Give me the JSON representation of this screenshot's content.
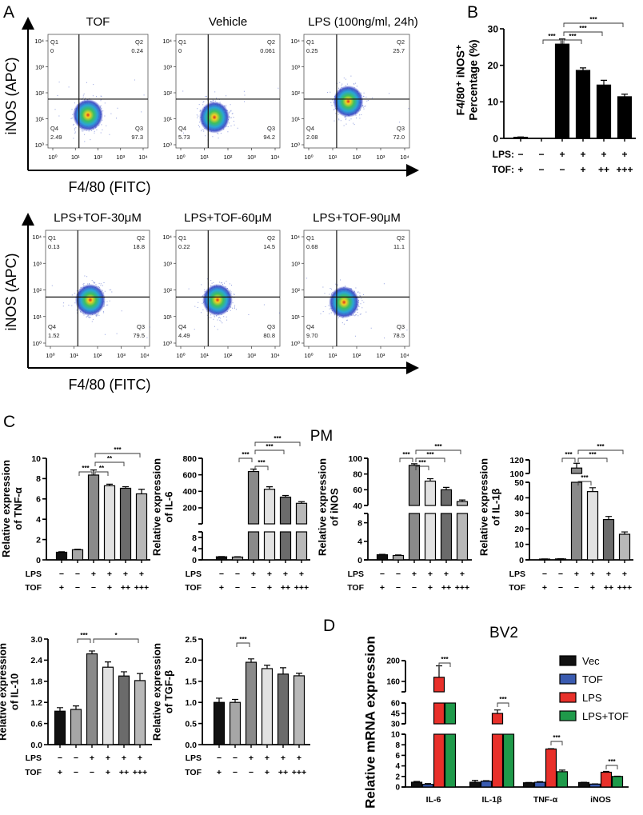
{
  "panel_labels": {
    "A": "A",
    "B": "B",
    "C": "C",
    "D": "D"
  },
  "panel_A": {
    "y_axis_label": "iNOS  (APC)",
    "x_axis_label": "F4/80 (FITC)",
    "ticks": [
      "10⁰",
      "10¹",
      "10²",
      "10³",
      "10⁴"
    ],
    "quadrant_names": [
      "Q1",
      "Q2",
      "Q3",
      "Q4"
    ],
    "plots": [
      {
        "title": "TOF",
        "Q1": "0",
        "Q2": "0.24",
        "Q3": "97.3",
        "Q4": "2.49"
      },
      {
        "title": "Vehicle",
        "Q1": "0",
        "Q2": "0.061",
        "Q3": "94.2",
        "Q4": "5.73"
      },
      {
        "title": "LPS (100ng/ml, 24h)",
        "Q1": "0.25",
        "Q2": "25.7",
        "Q3": "72.0",
        "Q4": "2.08"
      },
      {
        "title": "LPS+TOF-30μM",
        "Q1": "0.13",
        "Q2": "18.8",
        "Q3": "79.5",
        "Q4": "1.52"
      },
      {
        "title": "LPS+TOF-60μM",
        "Q1": "0.22",
        "Q2": "14.5",
        "Q3": "80.8",
        "Q4": "4.49"
      },
      {
        "title": "LPS+TOF-90μM",
        "Q1": "0.68",
        "Q2": "11.1",
        "Q3": "78.5",
        "Q4": "9.70"
      }
    ],
    "density_colors": [
      "#d42a1e",
      "#f2d224",
      "#3cc060",
      "#2aa4d8",
      "#2c3cc0"
    ]
  },
  "panel_C_title": "PM",
  "panel_D_title": "BV2",
  "chart_data": [
    {
      "id": "B",
      "type": "bar",
      "ylabel": [
        "F4/80⁺ iNOS⁺",
        "Percentage (%)"
      ],
      "ylim": [
        0,
        30
      ],
      "yticks": [
        "0",
        "10",
        "20",
        "30"
      ],
      "conditions": [
        {
          "label": "LPS:",
          "values": [
            "−",
            "−",
            "+",
            "+",
            "+",
            "+"
          ]
        },
        {
          "label": "TOF:",
          "values": [
            "+",
            "−",
            "−",
            "+",
            "++",
            "+++"
          ]
        }
      ],
      "values": [
        0.3,
        0,
        25.8,
        18.6,
        14.6,
        11.4
      ],
      "errors": [
        0.1,
        0,
        1.4,
        0.7,
        1.3,
        0.7
      ],
      "colors": [
        "#000000",
        "#000000",
        "#000000",
        "#000000",
        "#000000",
        "#000000"
      ],
      "significance": [
        {
          "from": 1,
          "to": 2,
          "label": "***"
        },
        {
          "from": 2,
          "to": 3,
          "label": "***"
        },
        {
          "from": 2,
          "to": 4,
          "label": "***"
        },
        {
          "from": 2,
          "to": 5,
          "label": "***"
        }
      ]
    },
    {
      "id": "TNF",
      "type": "bar",
      "ylabel": [
        "Relative expression",
        "of TNF-α"
      ],
      "ylim": [
        0,
        10
      ],
      "yticks": [
        "0",
        "2",
        "4",
        "6",
        "8",
        "10"
      ],
      "conditions": [
        {
          "label": "LPS",
          "values": [
            "−",
            "−",
            "+",
            "+",
            "+",
            "+"
          ]
        },
        {
          "label": "TOF",
          "values": [
            "+",
            "−",
            "−",
            "+",
            "++",
            "+++"
          ]
        }
      ],
      "values": [
        0.75,
        1.0,
        8.35,
        7.3,
        7.05,
        6.5
      ],
      "errors": [
        0.05,
        0.05,
        0.5,
        0.15,
        0.15,
        0.45
      ],
      "colors": [
        "#111111",
        "#a6a6a6",
        "#8a8a8a",
        "#e2e2e2",
        "#6b6b6b",
        "#b8b8b8"
      ],
      "significance": [
        {
          "from": 1,
          "to": 2,
          "label": "***"
        },
        {
          "from": 2,
          "to": 3,
          "label": "**"
        },
        {
          "from": 2,
          "to": 4,
          "label": "**"
        },
        {
          "from": 2,
          "to": 5,
          "label": "***"
        }
      ]
    },
    {
      "id": "IL6",
      "type": "bar",
      "ylabel": [
        "Relative expression",
        "of IL-6"
      ],
      "ylim": [
        0,
        800
      ],
      "y_axis_break": [
        10,
        200
      ],
      "yticks": [
        "0",
        "4",
        "8",
        "200",
        "400",
        "600",
        "800"
      ],
      "conditions": [
        {
          "label": "LPS",
          "values": [
            "−",
            "−",
            "+",
            "+",
            "+",
            "+"
          ]
        },
        {
          "label": "TOF",
          "values": [
            "+",
            "−",
            "−",
            "+",
            "++",
            "+++"
          ]
        }
      ],
      "values": [
        1.1,
        1.0,
        640,
        425,
        330,
        255
      ],
      "errors": [
        0.1,
        0.1,
        30,
        30,
        20,
        20
      ],
      "colors": [
        "#111111",
        "#a6a6a6",
        "#8a8a8a",
        "#e2e2e2",
        "#6b6b6b",
        "#b8b8b8"
      ],
      "significance": [
        {
          "from": 1,
          "to": 2,
          "label": "***"
        },
        {
          "from": 2,
          "to": 3,
          "label": "***"
        },
        {
          "from": 2,
          "to": 4,
          "label": "***"
        },
        {
          "from": 2,
          "to": 5,
          "label": "***"
        }
      ]
    },
    {
      "id": "iNOS",
      "type": "bar",
      "ylabel": [
        "Relative expression",
        "of iNOS"
      ],
      "ylim": [
        0,
        100
      ],
      "y_axis_break": [
        10,
        40
      ],
      "yticks": [
        "0",
        "4",
        "8",
        "40",
        "60",
        "80",
        "100"
      ],
      "conditions": [
        {
          "label": "LPS",
          "values": [
            "−",
            "−",
            "+",
            "+",
            "+",
            "+"
          ]
        },
        {
          "label": "TOF",
          "values": [
            "+",
            "−",
            "−",
            "+",
            "++",
            "+++"
          ]
        }
      ],
      "values": [
        1.1,
        0.95,
        91,
        71,
        60,
        45
      ],
      "errors": [
        0.1,
        0.1,
        2,
        3,
        3,
        2
      ],
      "colors": [
        "#111111",
        "#a6a6a6",
        "#8a8a8a",
        "#e2e2e2",
        "#6b6b6b",
        "#b8b8b8"
      ],
      "significance": [
        {
          "from": 1,
          "to": 2,
          "label": "***"
        },
        {
          "from": 2,
          "to": 3,
          "label": "***"
        },
        {
          "from": 2,
          "to": 4,
          "label": "***"
        },
        {
          "from": 2,
          "to": 5,
          "label": "***"
        }
      ]
    },
    {
      "id": "IL1B",
      "type": "bar",
      "ylabel": [
        "Relative expression",
        "of IL-1β"
      ],
      "ylim": [
        0,
        120
      ],
      "y_axis_break": [
        50,
        100
      ],
      "yticks": [
        "0",
        "10",
        "20",
        "30",
        "40",
        "50",
        "100",
        "120"
      ],
      "conditions": [
        {
          "label": "LPS",
          "values": [
            "−",
            "−",
            "+",
            "+",
            "+",
            "+"
          ]
        },
        {
          "label": "TOF",
          "values": [
            "+",
            "−",
            "−",
            "+",
            "++",
            "+++"
          ]
        }
      ],
      "values": [
        0.5,
        0.6,
        108,
        44,
        26,
        16.5
      ],
      "errors": [
        0.1,
        0.1,
        7,
        2.5,
        2,
        1.5
      ],
      "colors": [
        "#111111",
        "#a6a6a6",
        "#8a8a8a",
        "#e2e2e2",
        "#6b6b6b",
        "#b8b8b8"
      ],
      "significance": [
        {
          "from": 1,
          "to": 2,
          "label": "***"
        },
        {
          "from": 2,
          "to": 3,
          "label": "***"
        },
        {
          "from": 2,
          "to": 4,
          "label": "***"
        },
        {
          "from": 2,
          "to": 5,
          "label": "***"
        }
      ]
    },
    {
      "id": "IL10",
      "type": "bar",
      "ylabel": [
        "Relative expression",
        "of IL-10"
      ],
      "ylim": [
        0,
        3.0
      ],
      "yticks": [
        "0.0",
        "0.6",
        "1.2",
        "1.8",
        "2.4",
        "3.0"
      ],
      "conditions": [
        {
          "label": "LPS",
          "values": [
            "−",
            "−",
            "+",
            "+",
            "+",
            "+"
          ]
        },
        {
          "label": "TOF",
          "values": [
            "+",
            "−",
            "−",
            "+",
            "++",
            "+++"
          ]
        }
      ],
      "values": [
        0.95,
        1.0,
        2.58,
        2.2,
        1.95,
        1.82
      ],
      "errors": [
        0.1,
        0.1,
        0.08,
        0.15,
        0.12,
        0.2
      ],
      "colors": [
        "#111111",
        "#a6a6a6",
        "#8a8a8a",
        "#e2e2e2",
        "#6b6b6b",
        "#b8b8b8"
      ],
      "significance": [
        {
          "from": 1,
          "to": 2,
          "label": "***"
        },
        {
          "from": 2,
          "to": 5,
          "label": "*"
        }
      ]
    },
    {
      "id": "TGFB",
      "type": "bar",
      "ylabel": [
        "Relative expression",
        "of TGF-β"
      ],
      "ylim": [
        0,
        2.5
      ],
      "yticks": [
        "0.0",
        "0.5",
        "1.0",
        "1.5",
        "2.0",
        "2.5"
      ],
      "conditions": [
        {
          "label": "LPS",
          "values": [
            "−",
            "−",
            "+",
            "+",
            "+",
            "+"
          ]
        },
        {
          "label": "TOF",
          "values": [
            "+",
            "−",
            "−",
            "+",
            "++",
            "+++"
          ]
        }
      ],
      "values": [
        1.0,
        1.0,
        1.95,
        1.8,
        1.67,
        1.63
      ],
      "errors": [
        0.1,
        0.07,
        0.08,
        0.08,
        0.15,
        0.06
      ],
      "colors": [
        "#111111",
        "#a6a6a6",
        "#8a8a8a",
        "#e2e2e2",
        "#6b6b6b",
        "#b8b8b8"
      ],
      "significance": [
        {
          "from": 1,
          "to": 2,
          "label": "***"
        }
      ]
    },
    {
      "id": "D",
      "type": "bar",
      "ylabel": [
        "Relative mRNA expression"
      ],
      "ylim": [
        0,
        200
      ],
      "y_axis_break": [
        [
          10,
          30
        ],
        [
          60,
          140
        ]
      ],
      "yticks": [
        "0",
        "2",
        "4",
        "6",
        "8",
        "10",
        "30",
        "45",
        "60",
        "160",
        "200"
      ],
      "categories": [
        "IL-6",
        "IL-1β",
        "TNF-α",
        "iNOS"
      ],
      "legend_position": "top-right",
      "series": [
        {
          "name": "Vec",
          "color": "#111111",
          "values": [
            0.9,
            0.9,
            0.8,
            0.85
          ],
          "errors": [
            0.15,
            0.35,
            0.05,
            0.05
          ]
        },
        {
          "name": "TOF",
          "color": "#3a5bb0",
          "values": [
            0.5,
            1.1,
            0.9,
            0.55
          ],
          "errors": [
            0.15,
            0.1,
            0.1,
            0.05
          ]
        },
        {
          "name": "LPS",
          "color": "#e8302a",
          "values": [
            168,
            45,
            7.2,
            2.8
          ],
          "errors": [
            22,
            5,
            0.05,
            0.15
          ]
        },
        {
          "name": "LPS+TOF",
          "color": "#1f9a4a",
          "values": [
            100,
            20,
            2.9,
            2.0
          ],
          "errors": [
            0,
            0,
            0.3,
            0.05
          ]
        }
      ],
      "significance": [
        {
          "group": 0,
          "from": 2,
          "to": 3,
          "label": "***"
        },
        {
          "group": 1,
          "from": 2,
          "to": 3,
          "label": "***"
        },
        {
          "group": 2,
          "from": 2,
          "to": 3,
          "label": "***"
        },
        {
          "group": 3,
          "from": 2,
          "to": 3,
          "label": "***"
        }
      ]
    }
  ]
}
